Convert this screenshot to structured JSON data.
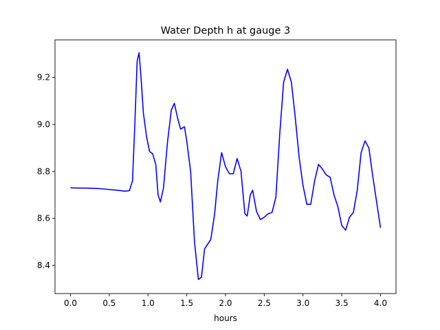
{
  "chart_data": {
    "type": "line",
    "title": "Water Depth h at gauge 3",
    "xlabel": "hours",
    "ylabel": "",
    "xlim": [
      -0.2,
      4.2
    ],
    "ylim": [
      8.28,
      9.36
    ],
    "xticks": [
      0.0,
      0.5,
      1.0,
      1.5,
      2.0,
      2.5,
      3.0,
      3.5,
      4.0
    ],
    "xtick_labels": [
      "0.0",
      "0.5",
      "1.0",
      "1.5",
      "2.0",
      "2.5",
      "3.0",
      "3.5",
      "4.0"
    ],
    "yticks": [
      8.4,
      8.6,
      8.8,
      9.0,
      9.2
    ],
    "ytick_labels": [
      "8.4",
      "8.6",
      "8.8",
      "9.0",
      "9.2"
    ],
    "grid": false,
    "series": [
      {
        "color": "#0000ff",
        "points": [
          [
            0.0,
            8.73
          ],
          [
            0.1,
            8.729
          ],
          [
            0.2,
            8.729
          ],
          [
            0.3,
            8.728
          ],
          [
            0.4,
            8.726
          ],
          [
            0.5,
            8.723
          ],
          [
            0.6,
            8.72
          ],
          [
            0.7,
            8.716
          ],
          [
            0.76,
            8.718
          ],
          [
            0.8,
            8.76
          ],
          [
            0.83,
            9.0
          ],
          [
            0.86,
            9.27
          ],
          [
            0.885,
            9.305
          ],
          [
            0.91,
            9.2
          ],
          [
            0.94,
            9.05
          ],
          [
            0.98,
            8.95
          ],
          [
            1.02,
            8.885
          ],
          [
            1.06,
            8.875
          ],
          [
            1.1,
            8.83
          ],
          [
            1.13,
            8.7
          ],
          [
            1.16,
            8.67
          ],
          [
            1.2,
            8.73
          ],
          [
            1.25,
            8.92
          ],
          [
            1.3,
            9.06
          ],
          [
            1.34,
            9.09
          ],
          [
            1.38,
            9.03
          ],
          [
            1.42,
            8.98
          ],
          [
            1.47,
            8.99
          ],
          [
            1.5,
            8.93
          ],
          [
            1.55,
            8.8
          ],
          [
            1.6,
            8.5
          ],
          [
            1.65,
            8.34
          ],
          [
            1.69,
            8.35
          ],
          [
            1.73,
            8.47
          ],
          [
            1.77,
            8.49
          ],
          [
            1.81,
            8.51
          ],
          [
            1.86,
            8.62
          ],
          [
            1.9,
            8.76
          ],
          [
            1.95,
            8.88
          ],
          [
            2.0,
            8.82
          ],
          [
            2.05,
            8.79
          ],
          [
            2.1,
            8.79
          ],
          [
            2.15,
            8.855
          ],
          [
            2.2,
            8.8
          ],
          [
            2.25,
            8.62
          ],
          [
            2.28,
            8.61
          ],
          [
            2.32,
            8.7
          ],
          [
            2.35,
            8.72
          ],
          [
            2.4,
            8.63
          ],
          [
            2.45,
            8.595
          ],
          [
            2.5,
            8.605
          ],
          [
            2.55,
            8.62
          ],
          [
            2.6,
            8.625
          ],
          [
            2.65,
            8.69
          ],
          [
            2.7,
            8.96
          ],
          [
            2.75,
            9.18
          ],
          [
            2.8,
            9.235
          ],
          [
            2.85,
            9.18
          ],
          [
            2.9,
            9.03
          ],
          [
            2.95,
            8.86
          ],
          [
            3.0,
            8.74
          ],
          [
            3.05,
            8.66
          ],
          [
            3.1,
            8.66
          ],
          [
            3.15,
            8.76
          ],
          [
            3.2,
            8.83
          ],
          [
            3.25,
            8.81
          ],
          [
            3.3,
            8.785
          ],
          [
            3.35,
            8.775
          ],
          [
            3.4,
            8.7
          ],
          [
            3.45,
            8.65
          ],
          [
            3.5,
            8.57
          ],
          [
            3.55,
            8.55
          ],
          [
            3.6,
            8.605
          ],
          [
            3.65,
            8.625
          ],
          [
            3.7,
            8.72
          ],
          [
            3.75,
            8.88
          ],
          [
            3.8,
            8.93
          ],
          [
            3.85,
            8.9
          ],
          [
            3.9,
            8.78
          ],
          [
            3.95,
            8.67
          ],
          [
            4.0,
            8.56
          ]
        ]
      }
    ]
  }
}
